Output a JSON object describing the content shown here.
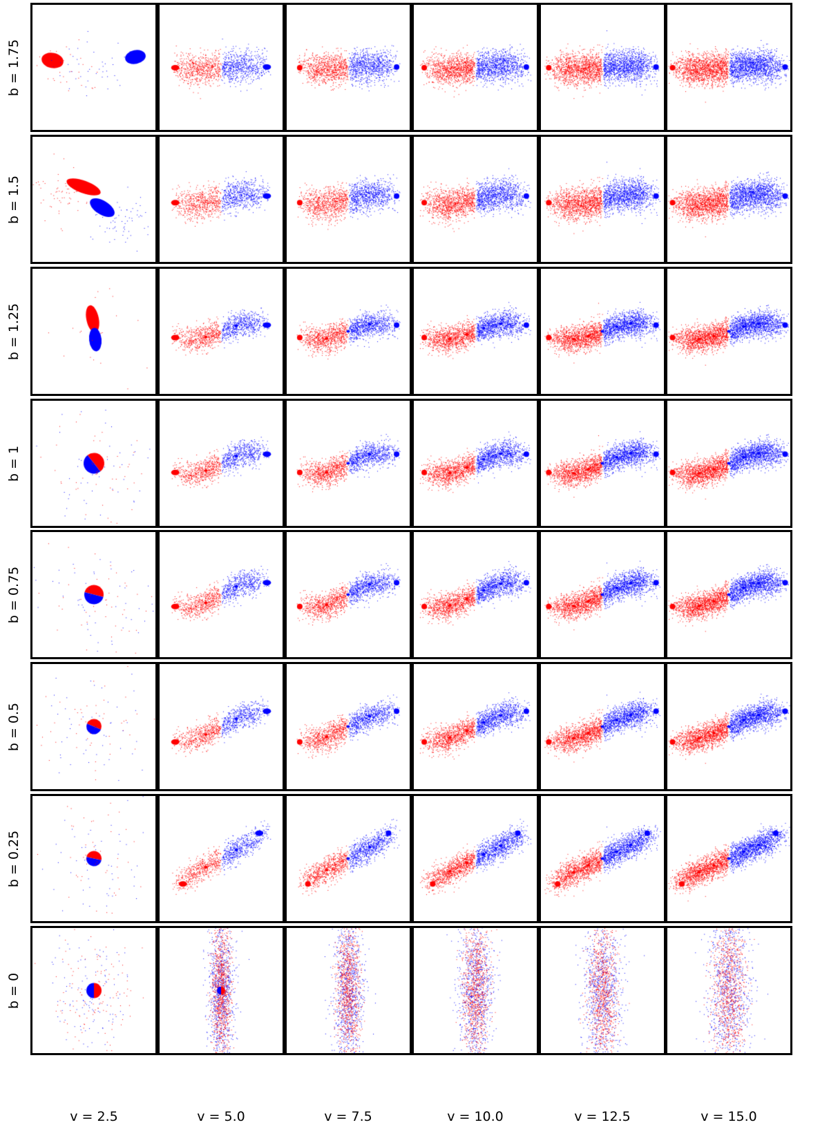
{
  "figure": {
    "row_labels": [
      "b = 1.75",
      "b = 1.5",
      "b = 1.25",
      "b = 1",
      "b = 0.75",
      "b = 0.5",
      "b = 0.25",
      "b = 0"
    ],
    "col_labels": [
      "v = 2.5",
      "v = 5.0",
      "v = 7.5",
      "v = 10.0",
      "v = 12.5",
      "v = 15.0"
    ],
    "colors": {
      "red_body": "#ff0000",
      "blue_body": "#0000ff",
      "panel_border": "#000000",
      "background": "#ffffff"
    }
  }
}
